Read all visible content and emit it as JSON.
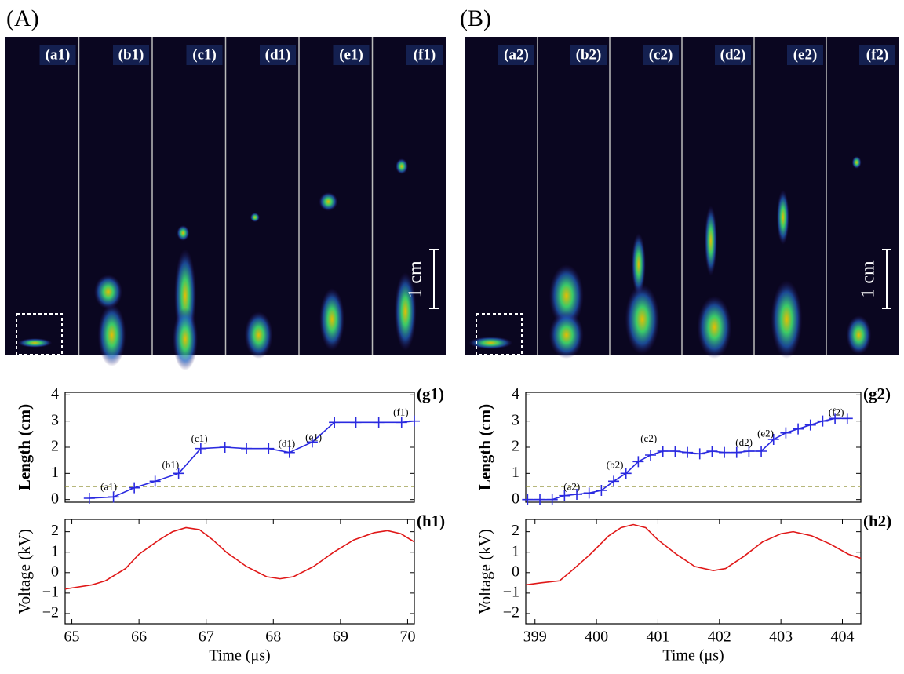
{
  "panels": [
    {
      "label": "(A)",
      "frames": [
        "(a1)",
        "(b1)",
        "(c1)",
        "(d1)",
        "(e1)",
        "(f1)"
      ],
      "scale_label": "1 cm"
    },
    {
      "label": "(B)",
      "frames": [
        "(a2)",
        "(b2)",
        "(c2)",
        "(d2)",
        "(e2)",
        "(f2)"
      ],
      "scale_label": "1 cm"
    }
  ],
  "chart_data": [
    {
      "type": "line",
      "title": "(g1)",
      "y_label": "Length (cm)",
      "marker": "+",
      "xlim": [
        64.9,
        70.1
      ],
      "ylim": [
        -0.1,
        4.1
      ],
      "yticks": [
        0,
        1,
        2,
        3,
        4
      ],
      "reference_line": 0.5,
      "reference_color": "#8c8c2c",
      "series": [
        {
          "color": "#2a2ae0",
          "x": [
            65.26,
            65.62,
            65.93,
            66.24,
            66.59,
            66.92,
            67.28,
            67.6,
            67.93,
            68.24,
            68.58,
            68.91,
            69.23,
            69.57,
            69.91,
            70.1
          ],
          "values": [
            0.05,
            0.1,
            0.45,
            0.7,
            1.0,
            1.95,
            2.0,
            1.95,
            1.95,
            1.8,
            2.2,
            2.95,
            2.95,
            2.95,
            2.95,
            3.0
          ]
        }
      ],
      "annotations": [
        {
          "text": "(a1)",
          "x": 65.55,
          "y": 0.45
        },
        {
          "text": "(b1)",
          "x": 66.47,
          "y": 1.3
        },
        {
          "text": "(c1)",
          "x": 66.9,
          "y": 2.3
        },
        {
          "text": "(d1)",
          "x": 68.2,
          "y": 2.1
        },
        {
          "text": "(e1)",
          "x": 68.6,
          "y": 2.35
        },
        {
          "text": "(f1)",
          "x": 69.9,
          "y": 3.3
        }
      ]
    },
    {
      "type": "line",
      "title": "(h1)",
      "y_label": "Voltage (kV)",
      "x_label": "Time (μs)",
      "xlim": [
        64.9,
        70.1
      ],
      "ylim": [
        -2.5,
        2.6
      ],
      "xticks": [
        65,
        66,
        67,
        68,
        69,
        70
      ],
      "yticks": [
        {
          "value": -2,
          "label": "−2"
        },
        {
          "value": -1,
          "label": "−1"
        },
        0,
        1,
        2
      ],
      "series": [
        {
          "color": "#e01818",
          "x": [
            64.9,
            65.0,
            65.3,
            65.5,
            65.8,
            66.0,
            66.3,
            66.5,
            66.7,
            66.9,
            67.1,
            67.3,
            67.6,
            67.9,
            68.1,
            68.3,
            68.6,
            68.9,
            69.2,
            69.5,
            69.7,
            69.9,
            70.1
          ],
          "values": [
            -0.8,
            -0.75,
            -0.6,
            -0.4,
            0.2,
            0.9,
            1.6,
            2.0,
            2.2,
            2.1,
            1.6,
            1.0,
            0.3,
            -0.2,
            -0.3,
            -0.2,
            0.3,
            1.0,
            1.6,
            1.95,
            2.05,
            1.9,
            1.5
          ]
        }
      ]
    },
    {
      "type": "line",
      "title": "(g2)",
      "y_label": "Length (cm)",
      "marker": "+",
      "xlim": [
        398.85,
        404.3
      ],
      "ylim": [
        -0.1,
        4.1
      ],
      "yticks": [
        0,
        1,
        2,
        3,
        4
      ],
      "reference_line": 0.5,
      "reference_color": "#8c8c2c",
      "series": [
        {
          "color": "#2a2ae0",
          "x": [
            398.88,
            399.08,
            399.28,
            399.48,
            399.68,
            399.88,
            400.08,
            400.28,
            400.48,
            400.68,
            400.88,
            401.08,
            401.28,
            401.48,
            401.68,
            401.88,
            402.08,
            402.28,
            402.48,
            402.68,
            402.88,
            403.08,
            403.28,
            403.48,
            403.68,
            403.88,
            404.08
          ],
          "values": [
            0,
            0,
            0,
            0.15,
            0.2,
            0.25,
            0.35,
            0.7,
            1.0,
            1.45,
            1.7,
            1.85,
            1.85,
            1.8,
            1.75,
            1.85,
            1.8,
            1.8,
            1.85,
            1.85,
            2.3,
            2.55,
            2.7,
            2.85,
            3.0,
            3.1,
            3.1
          ]
        }
      ],
      "annotations": [
        {
          "text": "(a2)",
          "x": 399.6,
          "y": 0.45
        },
        {
          "text": "(b2)",
          "x": 400.3,
          "y": 1.3
        },
        {
          "text": "(c2)",
          "x": 400.85,
          "y": 2.3
        },
        {
          "text": "(d2)",
          "x": 402.4,
          "y": 2.15
        },
        {
          "text": "(e2)",
          "x": 402.75,
          "y": 2.5
        },
        {
          "text": "(f2)",
          "x": 403.9,
          "y": 3.3
        }
      ]
    },
    {
      "type": "line",
      "title": "(h2)",
      "y_label": "Voltage (kV)",
      "x_label": "Time (μs)",
      "xlim": [
        398.85,
        404.3
      ],
      "ylim": [
        -2.5,
        2.6
      ],
      "xticks": [
        399,
        400,
        401,
        402,
        403,
        404
      ],
      "yticks": [
        {
          "value": -2,
          "label": "−2"
        },
        {
          "value": -1,
          "label": "−1"
        },
        0,
        1,
        2
      ],
      "series": [
        {
          "color": "#e01818",
          "x": [
            398.85,
            399.1,
            399.4,
            399.6,
            399.9,
            400.2,
            400.4,
            400.6,
            400.8,
            401.0,
            401.3,
            401.6,
            401.9,
            402.1,
            402.4,
            402.7,
            403.0,
            403.2,
            403.5,
            403.8,
            404.1,
            404.3
          ],
          "values": [
            -0.6,
            -0.5,
            -0.4,
            0.1,
            0.9,
            1.8,
            2.2,
            2.35,
            2.2,
            1.6,
            0.9,
            0.3,
            0.1,
            0.2,
            0.8,
            1.5,
            1.9,
            2.0,
            1.8,
            1.4,
            0.9,
            0.7
          ]
        }
      ]
    }
  ]
}
